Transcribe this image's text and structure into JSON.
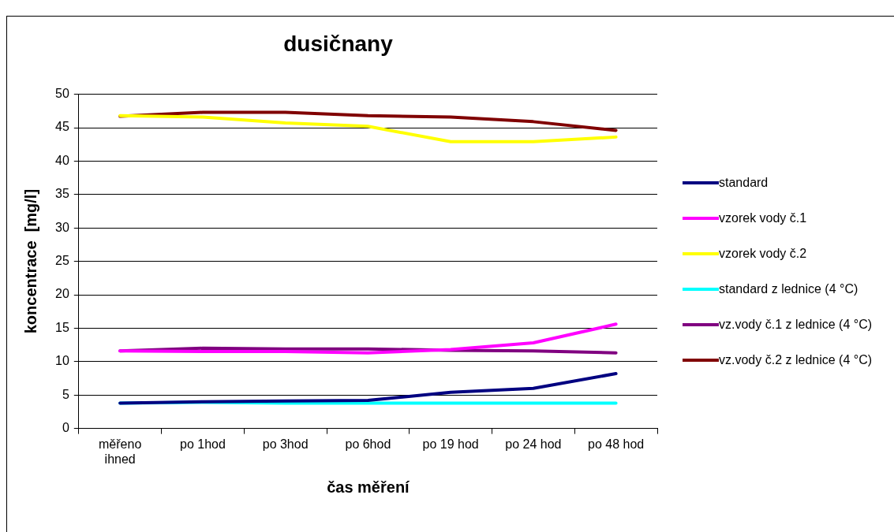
{
  "chart_data": {
    "type": "line",
    "title": "dusičnany",
    "xlabel": "čas měření",
    "ylabel": "koncentrace  [mg/l]",
    "categories": [
      "měřeno ihned",
      "po 1hod",
      "po 3hod",
      "po 6hod",
      "po 19 hod",
      "po 24 hod",
      "po 48 hod"
    ],
    "ylim": [
      0,
      50
    ],
    "yticks": [
      0,
      5,
      10,
      15,
      20,
      25,
      30,
      35,
      40,
      45,
      50
    ],
    "grid": "y",
    "legend": "right",
    "marker": "none",
    "line_style": "solid",
    "series": [
      {
        "name": "standard",
        "color": "#000080",
        "values": [
          3.8,
          4.0,
          4.1,
          4.2,
          5.4,
          6.0,
          8.2
        ]
      },
      {
        "name": "vzorek vody č.1",
        "color": "#ff00ff",
        "values": [
          11.6,
          11.5,
          11.5,
          11.3,
          11.8,
          12.8,
          15.6
        ]
      },
      {
        "name": "vzorek vody č.2",
        "color": "#ffff00",
        "values": [
          46.8,
          46.6,
          45.7,
          45.2,
          42.9,
          42.9,
          43.6
        ]
      },
      {
        "name": "standard z lednice (4 °C)",
        "color": "#00ffff",
        "values": [
          3.8,
          3.9,
          3.8,
          3.8,
          3.8,
          3.8,
          3.8
        ]
      },
      {
        "name": "vz.vody č.1 z lednice (4 °C)",
        "color": "#800080",
        "values": [
          11.6,
          12.0,
          11.9,
          11.9,
          11.7,
          11.6,
          11.3
        ]
      },
      {
        "name": "vz.vody č.2 z lednice (4 °C)",
        "color": "#800000",
        "values": [
          46.7,
          47.3,
          47.3,
          46.8,
          46.6,
          45.9,
          44.6
        ]
      }
    ]
  }
}
